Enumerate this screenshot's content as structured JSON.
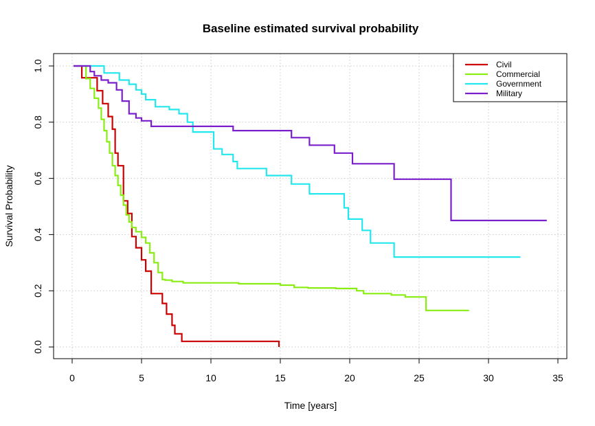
{
  "chart_data": {
    "type": "line",
    "step": true,
    "title": "Baseline estimated survival probability",
    "xlabel": "Time [years]",
    "ylabel": "Survival Probability",
    "xlim": [
      0,
      35
    ],
    "ylim": [
      0,
      1
    ],
    "x_ticks": [
      0,
      5,
      10,
      15,
      20,
      25,
      30,
      35
    ],
    "y_ticks": [
      0.0,
      0.2,
      0.4,
      0.6,
      0.8,
      1.0
    ],
    "x_tick_labels": [
      "0",
      "5",
      "10",
      "15",
      "20",
      "25",
      "30",
      "35"
    ],
    "y_tick_labels": [
      "0.0",
      "0.2",
      "0.4",
      "0.6",
      "0.8",
      "1.0"
    ],
    "grid": true,
    "legend_position": "top-right",
    "series": [
      {
        "name": "Civil",
        "color": "#cc0000",
        "x": [
          0.1,
          0.7,
          1.3,
          1.8,
          2.2,
          2.6,
          2.9,
          3.1,
          3.3,
          3.7,
          4.0,
          4.3,
          4.6,
          4.8,
          5.0,
          5.3,
          5.7,
          6.5,
          6.8,
          7.2,
          7.4,
          7.9,
          8.5,
          14.9
        ],
        "y": [
          1.0,
          0.958,
          0.958,
          0.912,
          0.866,
          0.82,
          0.775,
          0.69,
          0.645,
          0.52,
          0.475,
          0.393,
          0.353,
          0.353,
          0.31,
          0.27,
          0.19,
          0.155,
          0.117,
          0.077,
          0.047,
          0.02,
          0.02,
          0.0
        ]
      },
      {
        "name": "Commercial",
        "color": "#88ee11",
        "x": [
          0.7,
          1.0,
          1.3,
          1.6,
          1.9,
          2.1,
          2.3,
          2.5,
          2.7,
          2.9,
          3.1,
          3.3,
          3.5,
          3.7,
          3.9,
          4.1,
          4.3,
          4.6,
          5.0,
          5.3,
          5.6,
          5.9,
          6.2,
          6.5,
          6.7,
          7.2,
          8.0,
          10.0,
          12.0,
          15.0,
          16.0,
          17.0,
          19.0,
          20.5,
          21.0,
          23.0,
          24.0,
          25.5,
          28.6
        ],
        "y": [
          1.0,
          0.955,
          0.92,
          0.885,
          0.85,
          0.81,
          0.77,
          0.73,
          0.69,
          0.645,
          0.61,
          0.575,
          0.54,
          0.505,
          0.47,
          0.445,
          0.425,
          0.41,
          0.39,
          0.37,
          0.335,
          0.3,
          0.265,
          0.24,
          0.238,
          0.233,
          0.228,
          0.228,
          0.225,
          0.22,
          0.212,
          0.21,
          0.208,
          0.2,
          0.19,
          0.185,
          0.178,
          0.13,
          0.13
        ]
      },
      {
        "name": "Government",
        "color": "#22e8ee",
        "x": [
          0.1,
          2.3,
          3.4,
          4.1,
          4.6,
          5.0,
          5.3,
          6.0,
          7.0,
          7.7,
          8.3,
          8.7,
          10.2,
          10.8,
          11.6,
          11.9,
          14.0,
          15.8,
          17.1,
          19.6,
          19.9,
          20.9,
          21.5,
          23.2,
          32.3
        ],
        "y": [
          1.0,
          0.975,
          0.95,
          0.935,
          0.915,
          0.9,
          0.88,
          0.855,
          0.845,
          0.83,
          0.8,
          0.765,
          0.705,
          0.685,
          0.66,
          0.635,
          0.61,
          0.58,
          0.545,
          0.495,
          0.455,
          0.415,
          0.37,
          0.32,
          0.32
        ]
      },
      {
        "name": "Military",
        "color": "#7a1fcc",
        "x": [
          0.1,
          1.3,
          1.6,
          2.1,
          2.6,
          3.2,
          3.6,
          4.1,
          4.6,
          5.0,
          5.7,
          10.0,
          11.6,
          15.0,
          15.8,
          17.1,
          18.9,
          20.2,
          23.2,
          27.3,
          34.2
        ],
        "y": [
          1.0,
          0.98,
          0.965,
          0.95,
          0.94,
          0.915,
          0.875,
          0.83,
          0.815,
          0.805,
          0.785,
          0.785,
          0.77,
          0.77,
          0.745,
          0.718,
          0.69,
          0.652,
          0.597,
          0.45,
          0.45
        ]
      }
    ]
  }
}
